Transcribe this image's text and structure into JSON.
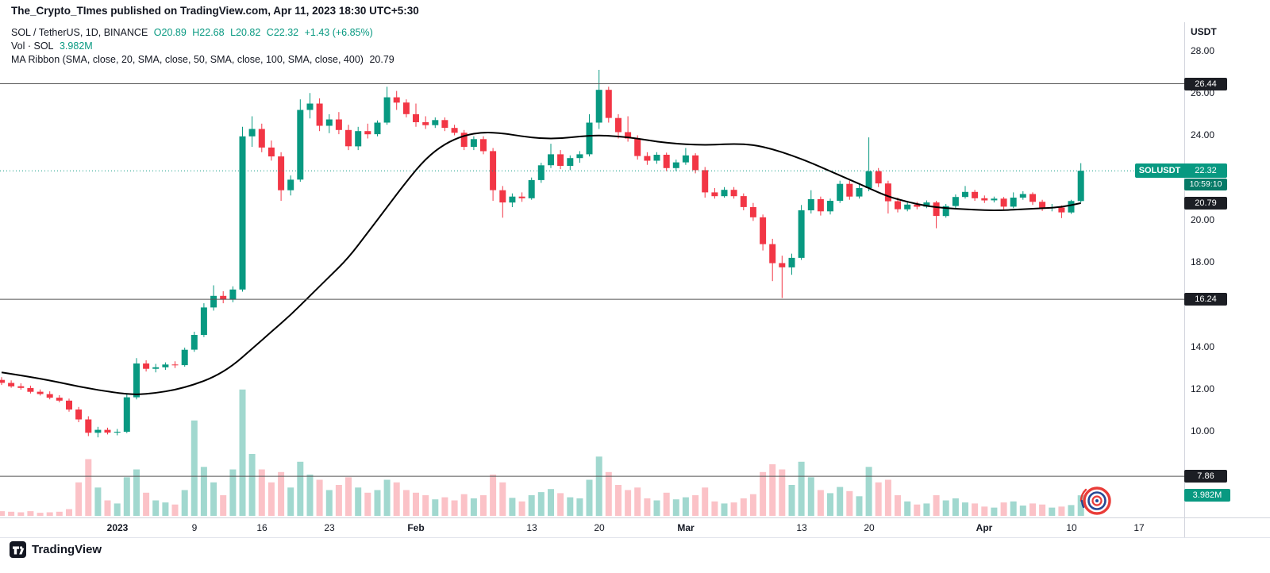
{
  "attribution": "The_Crypto_TImes published on TradingView.com, Apr 11, 2023 18:30 UTC+5:30",
  "legend": {
    "symbol": "SOL / TetherUS, 1D, BINANCE",
    "ohlc_items": [
      "O20.89",
      "H22.68",
      "L20.82",
      "C22.32",
      "+1.43 (+6.85%)"
    ],
    "vol_label": "Vol · SOL",
    "vol_value": "3.982M",
    "ma_label": "MA Ribbon (SMA, close, 20, SMA, close, 50, SMA, close, 100, SMA, close, 400)",
    "ma_value": "20.79"
  },
  "footer": {
    "brand": "TradingView"
  },
  "colors": {
    "up": "#089981",
    "down": "#F23645",
    "ma_line": "#000000",
    "level_line": "#555555",
    "accent_teal": "#089981",
    "badge_dark": "#1c1e24"
  },
  "chart_data": {
    "type": "candlestick",
    "symbol": "SOL / TetherUS",
    "symbol_short": "SOLUSDT",
    "exchange": "BINANCE",
    "interval": "1D",
    "period": "daily",
    "last": {
      "open": 20.89,
      "high": 22.68,
      "low": 20.82,
      "close": 22.32,
      "change": "+1.43",
      "change_pct": "+6.85%"
    },
    "current_price": 22.32,
    "countdown": "10:59:10",
    "ma_last": 20.79,
    "volume_last": "3.982M",
    "horizontal_levels": [
      26.44,
      16.24,
      7.86
    ],
    "y_axis": {
      "unit": "USDT",
      "ticks": [
        28,
        26,
        24,
        20,
        18,
        14,
        12,
        10
      ],
      "visible_range": [
        6.2,
        28.8
      ]
    },
    "x_axis_labels": [
      {
        "text": "2023",
        "day": 12,
        "major": true
      },
      {
        "text": "9",
        "day": 20,
        "major": false
      },
      {
        "text": "16",
        "day": 27,
        "major": false
      },
      {
        "text": "23",
        "day": 34,
        "major": false
      },
      {
        "text": "Feb",
        "day": 43,
        "major": true
      },
      {
        "text": "13",
        "day": 55,
        "major": false
      },
      {
        "text": "20",
        "day": 62,
        "major": false
      },
      {
        "text": "Mar",
        "day": 71,
        "major": true
      },
      {
        "text": "13",
        "day": 83,
        "major": false
      },
      {
        "text": "20",
        "day": 90,
        "major": false
      },
      {
        "text": "Apr",
        "day": 102,
        "major": true
      },
      {
        "text": "10",
        "day": 111,
        "major": false
      },
      {
        "text": "17",
        "day": 118,
        "major": false
      }
    ],
    "candles_format": [
      "open",
      "high",
      "low",
      "close",
      "volume_millions"
    ],
    "candles": [
      [
        12.42,
        12.55,
        12.18,
        12.28,
        0.9
      ],
      [
        12.28,
        12.4,
        12.05,
        12.12,
        0.8
      ],
      [
        12.12,
        12.26,
        11.96,
        12.04,
        0.7
      ],
      [
        12.04,
        12.15,
        11.78,
        11.86,
        0.9
      ],
      [
        11.86,
        11.97,
        11.68,
        11.75,
        0.6
      ],
      [
        11.75,
        11.88,
        11.5,
        11.58,
        0.7
      ],
      [
        11.58,
        11.7,
        11.36,
        11.44,
        0.8
      ],
      [
        11.44,
        11.54,
        10.92,
        11.02,
        1.3
      ],
      [
        11.02,
        11.14,
        10.42,
        10.55,
        6.5
      ],
      [
        10.55,
        10.7,
        9.76,
        9.92,
        11.0
      ],
      [
        9.92,
        10.2,
        9.7,
        10.06,
        5.5
      ],
      [
        10.06,
        10.16,
        9.84,
        9.93,
        3.0
      ],
      [
        9.93,
        10.1,
        9.8,
        9.97,
        2.4
      ],
      [
        9.97,
        11.75,
        9.9,
        11.6,
        7.5
      ],
      [
        11.6,
        13.45,
        11.5,
        13.2,
        9.0
      ],
      [
        13.2,
        13.35,
        12.82,
        12.95,
        4.5
      ],
      [
        12.95,
        13.18,
        12.78,
        13.02,
        3.0
      ],
      [
        13.02,
        13.25,
        12.9,
        13.15,
        2.6
      ],
      [
        13.15,
        13.3,
        12.98,
        13.12,
        2.2
      ],
      [
        13.12,
        13.95,
        13.05,
        13.85,
        5.0
      ],
      [
        13.85,
        14.7,
        13.75,
        14.55,
        18.5
      ],
      [
        14.55,
        16.05,
        14.45,
        15.85,
        9.5
      ],
      [
        15.85,
        16.9,
        15.7,
        16.4,
        6.5
      ],
      [
        16.4,
        16.62,
        16.05,
        16.22,
        4.0
      ],
      [
        16.22,
        16.85,
        16.1,
        16.7,
        9.0
      ],
      [
        16.7,
        24.4,
        16.6,
        23.95,
        24.5
      ],
      [
        23.95,
        24.9,
        23.45,
        24.3,
        12.0
      ],
      [
        24.3,
        24.55,
        23.2,
        23.42,
        9.0
      ],
      [
        23.42,
        23.75,
        22.8,
        23.0,
        6.5
      ],
      [
        23.0,
        23.2,
        20.9,
        21.4,
        8.5
      ],
      [
        21.4,
        22.1,
        21.15,
        21.9,
        5.5
      ],
      [
        21.9,
        25.7,
        21.8,
        25.2,
        10.5
      ],
      [
        25.2,
        26.0,
        24.8,
        25.5,
        8.0
      ],
      [
        25.5,
        25.75,
        24.2,
        24.45,
        7.0
      ],
      [
        24.45,
        25.0,
        24.1,
        24.75,
        5.0
      ],
      [
        24.75,
        25.1,
        24.05,
        24.25,
        6.0
      ],
      [
        24.25,
        24.5,
        23.3,
        23.48,
        7.5
      ],
      [
        23.48,
        24.4,
        23.3,
        24.2,
        5.5
      ],
      [
        24.2,
        24.55,
        23.85,
        24.05,
        4.5
      ],
      [
        24.05,
        24.7,
        23.95,
        24.6,
        5.0
      ],
      [
        24.6,
        26.3,
        24.5,
        25.8,
        7.0
      ],
      [
        25.8,
        26.1,
        25.2,
        25.55,
        6.5
      ],
      [
        25.55,
        25.7,
        24.85,
        25.0,
        5.0
      ],
      [
        25.0,
        25.5,
        24.4,
        24.62,
        4.5
      ],
      [
        24.62,
        24.9,
        24.3,
        24.48,
        4.0
      ],
      [
        24.48,
        24.85,
        24.35,
        24.72,
        3.2
      ],
      [
        24.72,
        24.85,
        24.2,
        24.35,
        3.6
      ],
      [
        24.35,
        24.5,
        24.0,
        24.12,
        3.0
      ],
      [
        24.12,
        24.25,
        23.3,
        23.45,
        4.2
      ],
      [
        23.45,
        23.95,
        23.3,
        23.82,
        3.4
      ],
      [
        23.82,
        23.95,
        23.1,
        23.25,
        4.0
      ],
      [
        23.25,
        23.4,
        20.9,
        21.4,
        8.0
      ],
      [
        21.4,
        21.6,
        20.1,
        20.82,
        6.5
      ],
      [
        20.82,
        21.25,
        20.6,
        21.1,
        3.5
      ],
      [
        21.1,
        21.3,
        20.85,
        21.02,
        2.8
      ],
      [
        21.02,
        22.0,
        20.95,
        21.88,
        4.0
      ],
      [
        21.88,
        22.7,
        21.75,
        22.58,
        4.6
      ],
      [
        22.58,
        23.6,
        22.45,
        23.1,
        5.2
      ],
      [
        23.1,
        23.3,
        22.4,
        22.55,
        4.4
      ],
      [
        22.55,
        23.05,
        22.35,
        22.92,
        3.6
      ],
      [
        22.92,
        23.25,
        22.7,
        23.1,
        3.4
      ],
      [
        23.1,
        25.0,
        23.0,
        24.6,
        7.0
      ],
      [
        24.6,
        27.1,
        24.3,
        26.15,
        11.5
      ],
      [
        26.15,
        26.3,
        24.6,
        24.82,
        8.5
      ],
      [
        24.82,
        25.0,
        23.85,
        24.15,
        6.0
      ],
      [
        24.15,
        24.9,
        23.7,
        23.85,
        5.0
      ],
      [
        23.85,
        24.0,
        22.85,
        23.02,
        5.5
      ],
      [
        23.02,
        23.2,
        22.6,
        22.8,
        3.4
      ],
      [
        22.8,
        23.2,
        22.65,
        23.08,
        3.0
      ],
      [
        23.08,
        23.18,
        22.3,
        22.45,
        4.5
      ],
      [
        22.45,
        22.85,
        22.3,
        22.72,
        3.2
      ],
      [
        22.72,
        23.4,
        22.6,
        23.05,
        3.6
      ],
      [
        23.05,
        23.15,
        22.2,
        22.35,
        4.0
      ],
      [
        22.35,
        22.5,
        21.05,
        21.3,
        5.5
      ],
      [
        21.3,
        21.5,
        21.0,
        21.12,
        2.8
      ],
      [
        21.12,
        21.55,
        21.05,
        21.42,
        2.4
      ],
      [
        21.42,
        21.55,
        21.0,
        21.12,
        2.6
      ],
      [
        21.12,
        21.25,
        20.45,
        20.6,
        3.4
      ],
      [
        20.6,
        20.8,
        19.95,
        20.12,
        4.2
      ],
      [
        20.12,
        20.25,
        18.55,
        18.85,
        8.5
      ],
      [
        18.85,
        19.1,
        17.1,
        17.95,
        10.0
      ],
      [
        17.95,
        18.3,
        16.3,
        17.75,
        9.0
      ],
      [
        17.75,
        18.4,
        17.4,
        18.2,
        6.0
      ],
      [
        18.2,
        20.7,
        18.1,
        20.45,
        10.5
      ],
      [
        20.45,
        21.4,
        20.3,
        20.98,
        7.5
      ],
      [
        20.98,
        21.1,
        20.2,
        20.4,
        5.0
      ],
      [
        20.4,
        21.0,
        20.25,
        20.9,
        4.4
      ],
      [
        20.9,
        21.85,
        20.8,
        21.7,
        5.6
      ],
      [
        21.7,
        21.85,
        20.95,
        21.1,
        4.8
      ],
      [
        21.1,
        21.65,
        21.0,
        21.5,
        3.8
      ],
      [
        21.5,
        23.9,
        21.35,
        22.3,
        9.5
      ],
      [
        22.3,
        22.45,
        21.55,
        21.72,
        6.5
      ],
      [
        21.72,
        21.85,
        20.3,
        20.88,
        7.0
      ],
      [
        20.88,
        21.05,
        20.35,
        20.5,
        4.0
      ],
      [
        20.5,
        20.85,
        20.4,
        20.72,
        2.8
      ],
      [
        20.72,
        20.85,
        20.5,
        20.62,
        2.2
      ],
      [
        20.62,
        20.92,
        20.55,
        20.82,
        2.4
      ],
      [
        20.82,
        20.9,
        19.6,
        20.18,
        4.0
      ],
      [
        20.18,
        20.75,
        20.1,
        20.65,
        3.0
      ],
      [
        20.65,
        21.2,
        20.55,
        21.08,
        3.4
      ],
      [
        21.08,
        21.6,
        21.0,
        21.32,
        2.6
      ],
      [
        21.32,
        21.42,
        20.9,
        21.02,
        2.4
      ],
      [
        21.02,
        21.15,
        20.8,
        20.92,
        1.8
      ],
      [
        20.92,
        21.1,
        20.82,
        21.0,
        1.6
      ],
      [
        21.0,
        21.08,
        20.5,
        20.62,
        2.6
      ],
      [
        20.62,
        21.3,
        20.55,
        21.05,
        2.8
      ],
      [
        21.05,
        21.35,
        20.95,
        21.22,
        2.0
      ],
      [
        21.22,
        21.3,
        20.7,
        20.85,
        2.4
      ],
      [
        20.85,
        20.95,
        20.42,
        20.55,
        2.2
      ],
      [
        20.55,
        20.75,
        20.4,
        20.58,
        1.6
      ],
      [
        20.58,
        20.68,
        20.08,
        20.35,
        1.8
      ],
      [
        20.35,
        20.95,
        20.28,
        20.89,
        2.1
      ],
      [
        20.89,
        22.68,
        20.82,
        22.32,
        3.982
      ]
    ],
    "ma_points": [
      [
        0,
        12.78
      ],
      [
        4,
        12.5
      ],
      [
        8,
        12.1
      ],
      [
        12,
        11.8
      ],
      [
        14,
        11.72
      ],
      [
        16,
        11.8
      ],
      [
        18,
        11.95
      ],
      [
        20,
        12.2
      ],
      [
        22,
        12.55
      ],
      [
        24,
        13.1
      ],
      [
        26,
        13.9
      ],
      [
        28,
        14.7
      ],
      [
        30,
        15.5
      ],
      [
        32,
        16.4
      ],
      [
        34,
        17.3
      ],
      [
        36,
        18.2
      ],
      [
        38,
        19.4
      ],
      [
        40,
        20.6
      ],
      [
        42,
        21.8
      ],
      [
        44,
        22.9
      ],
      [
        46,
        23.6
      ],
      [
        48,
        24.0
      ],
      [
        50,
        24.15
      ],
      [
        52,
        24.1
      ],
      [
        54,
        23.95
      ],
      [
        56,
        23.85
      ],
      [
        58,
        23.85
      ],
      [
        60,
        23.95
      ],
      [
        62,
        24.0
      ],
      [
        64,
        23.95
      ],
      [
        66,
        23.85
      ],
      [
        68,
        23.7
      ],
      [
        70,
        23.6
      ],
      [
        72,
        23.55
      ],
      [
        74,
        23.55
      ],
      [
        76,
        23.6
      ],
      [
        78,
        23.55
      ],
      [
        80,
        23.35
      ],
      [
        82,
        23.05
      ],
      [
        84,
        22.7
      ],
      [
        86,
        22.3
      ],
      [
        88,
        21.9
      ],
      [
        90,
        21.5
      ],
      [
        92,
        21.1
      ],
      [
        94,
        20.85
      ],
      [
        96,
        20.65
      ],
      [
        98,
        20.55
      ],
      [
        100,
        20.5
      ],
      [
        102,
        20.45
      ],
      [
        104,
        20.45
      ],
      [
        106,
        20.5
      ],
      [
        108,
        20.55
      ],
      [
        110,
        20.6
      ],
      [
        112,
        20.79
      ]
    ]
  }
}
